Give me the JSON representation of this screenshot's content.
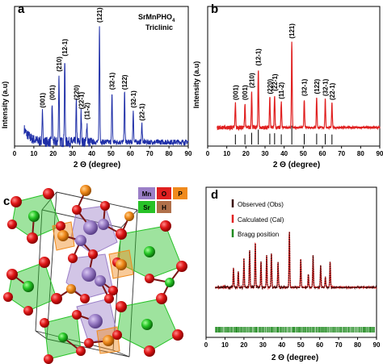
{
  "panels": {
    "a": {
      "letter": "a",
      "formula_main": "SrMnPHO",
      "formula_sub": "4",
      "system": "Triclinic",
      "xlabel": "2 Θ (degree)",
      "ylabel": "Intensity (a.u)"
    },
    "b": {
      "letter": "b",
      "xlabel": "2 Θ (degree)",
      "ylabel": "Intensity (a.u)"
    },
    "c": {
      "letter": "c"
    },
    "d": {
      "letter": "d",
      "xlabel": "2 Θ (degree)"
    }
  },
  "structure_legend": [
    {
      "label": "Mn",
      "color": "#9b7fc7"
    },
    {
      "label": "O",
      "color": "#e02020"
    },
    {
      "label": "P",
      "color": "#f08a1c"
    },
    {
      "label": "Sr",
      "color": "#27c227"
    },
    {
      "label": "H",
      "color": "#b0704a"
    }
  ],
  "legend_d": [
    {
      "label": "Observed (Obs)",
      "color": "#3a0b0b"
    },
    {
      "label": "Calculated (Cal)",
      "color": "#e02020"
    },
    {
      "label": "Bragg position",
      "color": "#1f8a1f"
    }
  ],
  "colors": {
    "xrd_a": "#1f2fa8",
    "xrd_b": "#e02020",
    "bragg": "#1f8a1f",
    "obs": "#3a0b0b"
  },
  "chart_data": [
    {
      "type": "line",
      "panel": "a",
      "xlim": [
        0,
        90
      ],
      "xticks": [
        0,
        10,
        20,
        30,
        40,
        50,
        60,
        70,
        80,
        90
      ],
      "xlabel": "2 Θ (degree)",
      "ylabel": "Intensity (a.u)",
      "peaks": [
        {
          "x": 14.5,
          "h": 0.24,
          "label": "(001)"
        },
        {
          "x": 19.5,
          "h": 0.3,
          "label": "(001)"
        },
        {
          "x": 23.0,
          "h": 0.52,
          "label": "(210)"
        },
        {
          "x": 26.0,
          "h": 0.64,
          "label": "(12-1)"
        },
        {
          "x": 32.0,
          "h": 0.3,
          "label": "(220)"
        },
        {
          "x": 34.5,
          "h": 0.23,
          "label": "(22-1)"
        },
        {
          "x": 37.5,
          "h": 0.15,
          "label": "(11-2)"
        },
        {
          "x": 44.0,
          "h": 0.9,
          "label": "(121)"
        },
        {
          "x": 50.5,
          "h": 0.38,
          "label": "(32-1)"
        },
        {
          "x": 57.0,
          "h": 0.38,
          "label": "(122)"
        },
        {
          "x": 61.5,
          "h": 0.24,
          "label": "(32-1)"
        },
        {
          "x": 66.0,
          "h": 0.14,
          "label": "(22-1)"
        }
      ]
    },
    {
      "type": "line",
      "panel": "b",
      "xlim": [
        0,
        90
      ],
      "xticks": [
        0,
        10,
        20,
        30,
        40,
        50,
        60,
        70,
        80,
        90
      ],
      "xlabel": "2 Θ (degree)",
      "ylabel": "Intensity (a.u)",
      "peaks": [
        {
          "x": 14.5,
          "h": 0.24,
          "label": "(001)"
        },
        {
          "x": 19.5,
          "h": 0.24,
          "label": "(001)"
        },
        {
          "x": 23.0,
          "h": 0.36,
          "label": "(210)"
        },
        {
          "x": 26.5,
          "h": 0.58,
          "label": "(12-1)"
        },
        {
          "x": 32.5,
          "h": 0.3,
          "label": "(220)"
        },
        {
          "x": 35.0,
          "h": 0.33,
          "label": "(22-1)"
        },
        {
          "x": 38.5,
          "h": 0.25,
          "label": "(11-2)"
        },
        {
          "x": 44.0,
          "h": 0.85,
          "label": "(121)"
        },
        {
          "x": 50.5,
          "h": 0.28,
          "label": "(32-1)"
        },
        {
          "x": 57.0,
          "h": 0.3,
          "label": "(122)"
        },
        {
          "x": 61.5,
          "h": 0.28,
          "label": "(32-1)"
        },
        {
          "x": 65.0,
          "h": 0.24,
          "label": "(22-1)"
        }
      ],
      "reference_lines": [
        14.5,
        19.5,
        23.0,
        26.5,
        32.5,
        35.0,
        38.5,
        44.0,
        50.5,
        57.0,
        61.5,
        65.0
      ]
    },
    {
      "type": "line",
      "panel": "d",
      "xlim": [
        0,
        90
      ],
      "xticks": [
        0,
        10,
        20,
        30,
        40,
        50,
        60,
        70,
        80,
        90
      ],
      "xlabel": "2 Θ (degree)",
      "series": [
        {
          "name": "Observed (Obs)",
          "style": "dotted"
        },
        {
          "name": "Calculated (Cal)",
          "style": "solid"
        },
        {
          "name": "Bragg position",
          "style": "ticks"
        }
      ],
      "peaks": [
        {
          "x": 14.5,
          "h": 0.3
        },
        {
          "x": 17.0,
          "h": 0.24
        },
        {
          "x": 20.0,
          "h": 0.44
        },
        {
          "x": 23.0,
          "h": 0.58
        },
        {
          "x": 26.0,
          "h": 0.7
        },
        {
          "x": 29.0,
          "h": 0.4
        },
        {
          "x": 32.0,
          "h": 0.5
        },
        {
          "x": 34.5,
          "h": 0.54
        },
        {
          "x": 38.0,
          "h": 0.4
        },
        {
          "x": 44.0,
          "h": 0.86
        },
        {
          "x": 50.0,
          "h": 0.44
        },
        {
          "x": 54.0,
          "h": 0.2
        },
        {
          "x": 56.5,
          "h": 0.5
        },
        {
          "x": 60.5,
          "h": 0.34
        },
        {
          "x": 63.0,
          "h": 0.16
        },
        {
          "x": 65.5,
          "h": 0.4
        }
      ],
      "bragg_range": [
        5,
        89
      ]
    }
  ]
}
